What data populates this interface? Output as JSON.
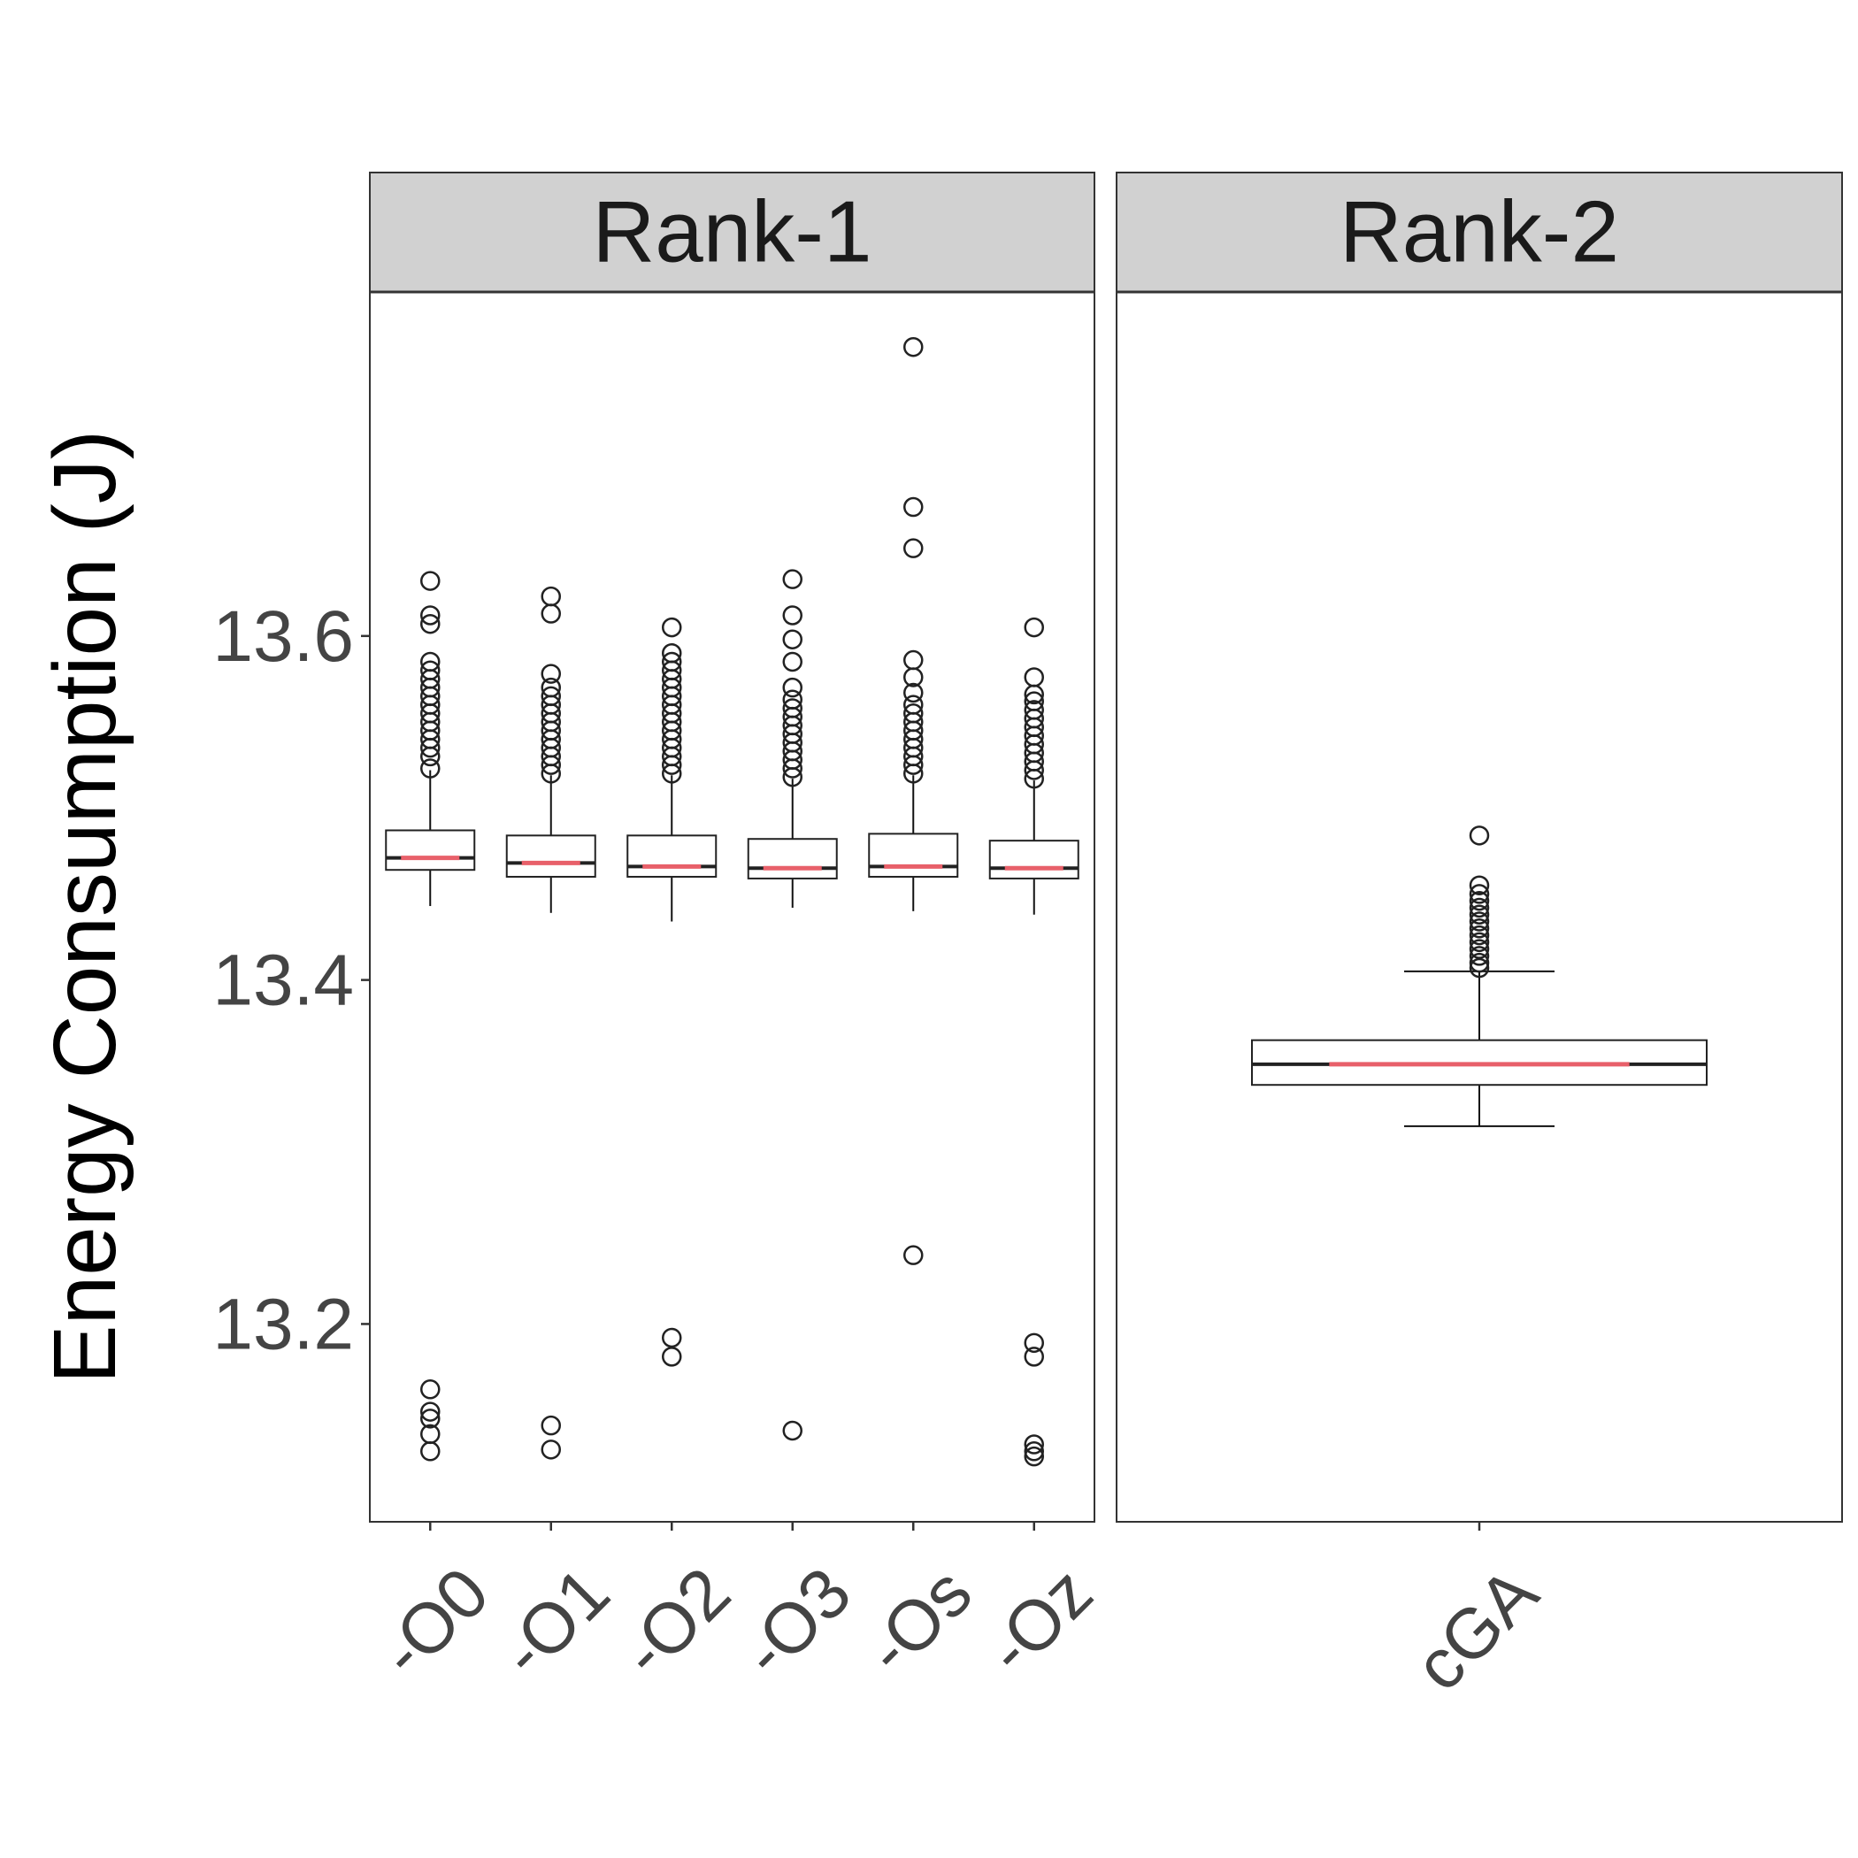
{
  "chart_data": {
    "type": "box",
    "ylabel": "Energy Consumption (J)",
    "ylim": [
      13.085,
      13.8
    ],
    "yticks": [
      13.2,
      13.4,
      13.6
    ],
    "ytick_labels": [
      "13.2",
      "13.4",
      "13.6"
    ],
    "grid": false,
    "colors": {
      "median": "#e8606a",
      "box_stroke": "#222222",
      "strip_fill": "#d1d1d1"
    },
    "panels": [
      {
        "strip_label": "Rank-1",
        "categories": [
          "-O0",
          "-O1",
          "-O2",
          "-O3",
          "-Os",
          "-Oz"
        ],
        "boxes": [
          {
            "q1": 13.464,
            "median": 13.471,
            "q3": 13.487,
            "whisker_low": 13.443,
            "whisker_high": 13.522,
            "outliers": [
              13.126,
              13.136,
              13.145,
              13.149,
              13.162,
              13.523,
              13.53,
              13.535,
              13.54,
              13.545,
              13.55,
              13.555,
              13.56,
              13.565,
              13.57,
              13.575,
              13.58,
              13.585,
              13.607,
              13.612,
              13.632
            ]
          },
          {
            "q1": 13.46,
            "median": 13.468,
            "q3": 13.484,
            "whisker_low": 13.439,
            "whisker_high": 13.519,
            "outliers": [
              13.127,
              13.141,
              13.52,
              13.525,
              13.53,
              13.535,
              13.54,
              13.545,
              13.55,
              13.555,
              13.56,
              13.565,
              13.57,
              13.578,
              13.613,
              13.623
            ]
          },
          {
            "q1": 13.46,
            "median": 13.466,
            "q3": 13.484,
            "whisker_low": 13.434,
            "whisker_high": 13.519,
            "outliers": [
              13.181,
              13.192,
              13.52,
              13.525,
              13.53,
              13.535,
              13.54,
              13.545,
              13.55,
              13.555,
              13.56,
              13.565,
              13.57,
              13.575,
              13.58,
              13.585,
              13.59,
              13.605
            ]
          },
          {
            "q1": 13.459,
            "median": 13.465,
            "q3": 13.482,
            "whisker_low": 13.442,
            "whisker_high": 13.517,
            "outliers": [
              13.138,
              13.518,
              13.523,
              13.528,
              13.533,
              13.538,
              13.543,
              13.548,
              13.553,
              13.558,
              13.563,
              13.57,
              13.585,
              13.598,
              13.612,
              13.633
            ]
          },
          {
            "q1": 13.46,
            "median": 13.466,
            "q3": 13.485,
            "whisker_low": 13.44,
            "whisker_high": 13.519,
            "outliers": [
              13.24,
              13.52,
              13.525,
              13.53,
              13.535,
              13.54,
              13.545,
              13.55,
              13.555,
              13.56,
              13.567,
              13.576,
              13.586,
              13.651,
              13.675,
              13.768
            ]
          },
          {
            "q1": 13.459,
            "median": 13.465,
            "q3": 13.481,
            "whisker_low": 13.438,
            "whisker_high": 13.516,
            "outliers": [
              13.123,
              13.126,
              13.13,
              13.181,
              13.189,
              13.517,
              13.522,
              13.527,
              13.532,
              13.537,
              13.542,
              13.547,
              13.552,
              13.557,
              13.562,
              13.566,
              13.576,
              13.605
            ]
          }
        ]
      },
      {
        "strip_label": "Rank-2",
        "categories": [
          "cGA"
        ],
        "boxes": [
          {
            "q1": 13.339,
            "median": 13.351,
            "q3": 13.365,
            "whisker_low": 13.315,
            "whisker_high": 13.405,
            "outliers": [
              13.407,
              13.41,
              13.414,
              13.418,
              13.422,
              13.426,
              13.43,
              13.434,
              13.438,
              13.442,
              13.446,
              13.45,
              13.455,
              13.484
            ]
          }
        ]
      }
    ]
  }
}
